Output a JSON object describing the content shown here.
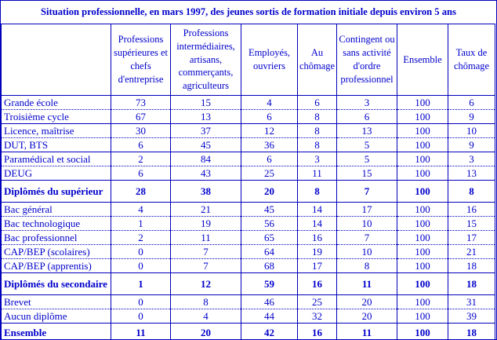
{
  "title": "Situation professionnelle, en mars 1997, des jeunes sortis de formation initiale depuis environ 5 ans",
  "colors": {
    "text": "#0000cc",
    "border": "#0000bb",
    "background": "#ffffff"
  },
  "table": {
    "corner_header": "",
    "columns": [
      "Professions supérieures et chefs d'entreprise",
      "Professions intermédiaires, artisans, commerçants, agriculteurs",
      "Employés, ouvriers",
      "Au chômage",
      "Contingent ou sans activité d'ordre professionnel",
      "Ensemble",
      "Taux de chômage"
    ],
    "rows": [
      {
        "label": "Grande école",
        "values": [
          73,
          15,
          4,
          6,
          3,
          100,
          6
        ],
        "bold": false,
        "sep": "dotted"
      },
      {
        "label": "Troisième cycle",
        "values": [
          67,
          13,
          6,
          8,
          6,
          100,
          9
        ],
        "bold": false,
        "sep": "solid"
      },
      {
        "label": "Licence, maîtrise",
        "values": [
          30,
          37,
          12,
          8,
          13,
          100,
          10
        ],
        "bold": false,
        "sep": "dotted"
      },
      {
        "label": "DUT, BTS",
        "values": [
          6,
          45,
          36,
          8,
          5,
          100,
          9
        ],
        "bold": false,
        "sep": "solid"
      },
      {
        "label": "Paramédical et social",
        "values": [
          2,
          84,
          6,
          3,
          5,
          100,
          3
        ],
        "bold": false,
        "sep": "dotted"
      },
      {
        "label": "DEUG",
        "values": [
          6,
          43,
          25,
          11,
          15,
          100,
          13
        ],
        "bold": false,
        "sep": "solid"
      },
      {
        "label": "Diplômés du supérieur",
        "values": [
          28,
          38,
          20,
          8,
          7,
          100,
          8
        ],
        "bold": true,
        "sep": "solid"
      },
      {
        "label": "Bac général",
        "values": [
          4,
          21,
          45,
          14,
          17,
          100,
          16
        ],
        "bold": false,
        "sep": "dotted"
      },
      {
        "label": "Bac technologique",
        "values": [
          1,
          19,
          56,
          14,
          10,
          100,
          15
        ],
        "bold": false,
        "sep": "dotted"
      },
      {
        "label": "Bac professionnel",
        "values": [
          2,
          11,
          65,
          16,
          7,
          100,
          17
        ],
        "bold": false,
        "sep": "dotted"
      },
      {
        "label": "CAP/BEP (scolaires)",
        "values": [
          0,
          7,
          64,
          19,
          10,
          100,
          21
        ],
        "bold": false,
        "sep": "dotted"
      },
      {
        "label": "CAP/BEP (apprentis)",
        "values": [
          0,
          7,
          68,
          17,
          8,
          100,
          18
        ],
        "bold": false,
        "sep": "solid"
      },
      {
        "label": "Diplômés du secondaire",
        "values": [
          1,
          12,
          59,
          16,
          11,
          100,
          18
        ],
        "bold": true,
        "sep": "solid"
      },
      {
        "label": "Brevet",
        "values": [
          0,
          8,
          46,
          25,
          20,
          100,
          31
        ],
        "bold": false,
        "sep": "dotted"
      },
      {
        "label": "Aucun diplôme",
        "values": [
          0,
          4,
          44,
          32,
          20,
          100,
          39
        ],
        "bold": false,
        "sep": "solid"
      },
      {
        "label": "Ensemble",
        "values": [
          11,
          20,
          42,
          16,
          11,
          100,
          18
        ],
        "bold": true,
        "sep": "solid"
      }
    ]
  }
}
